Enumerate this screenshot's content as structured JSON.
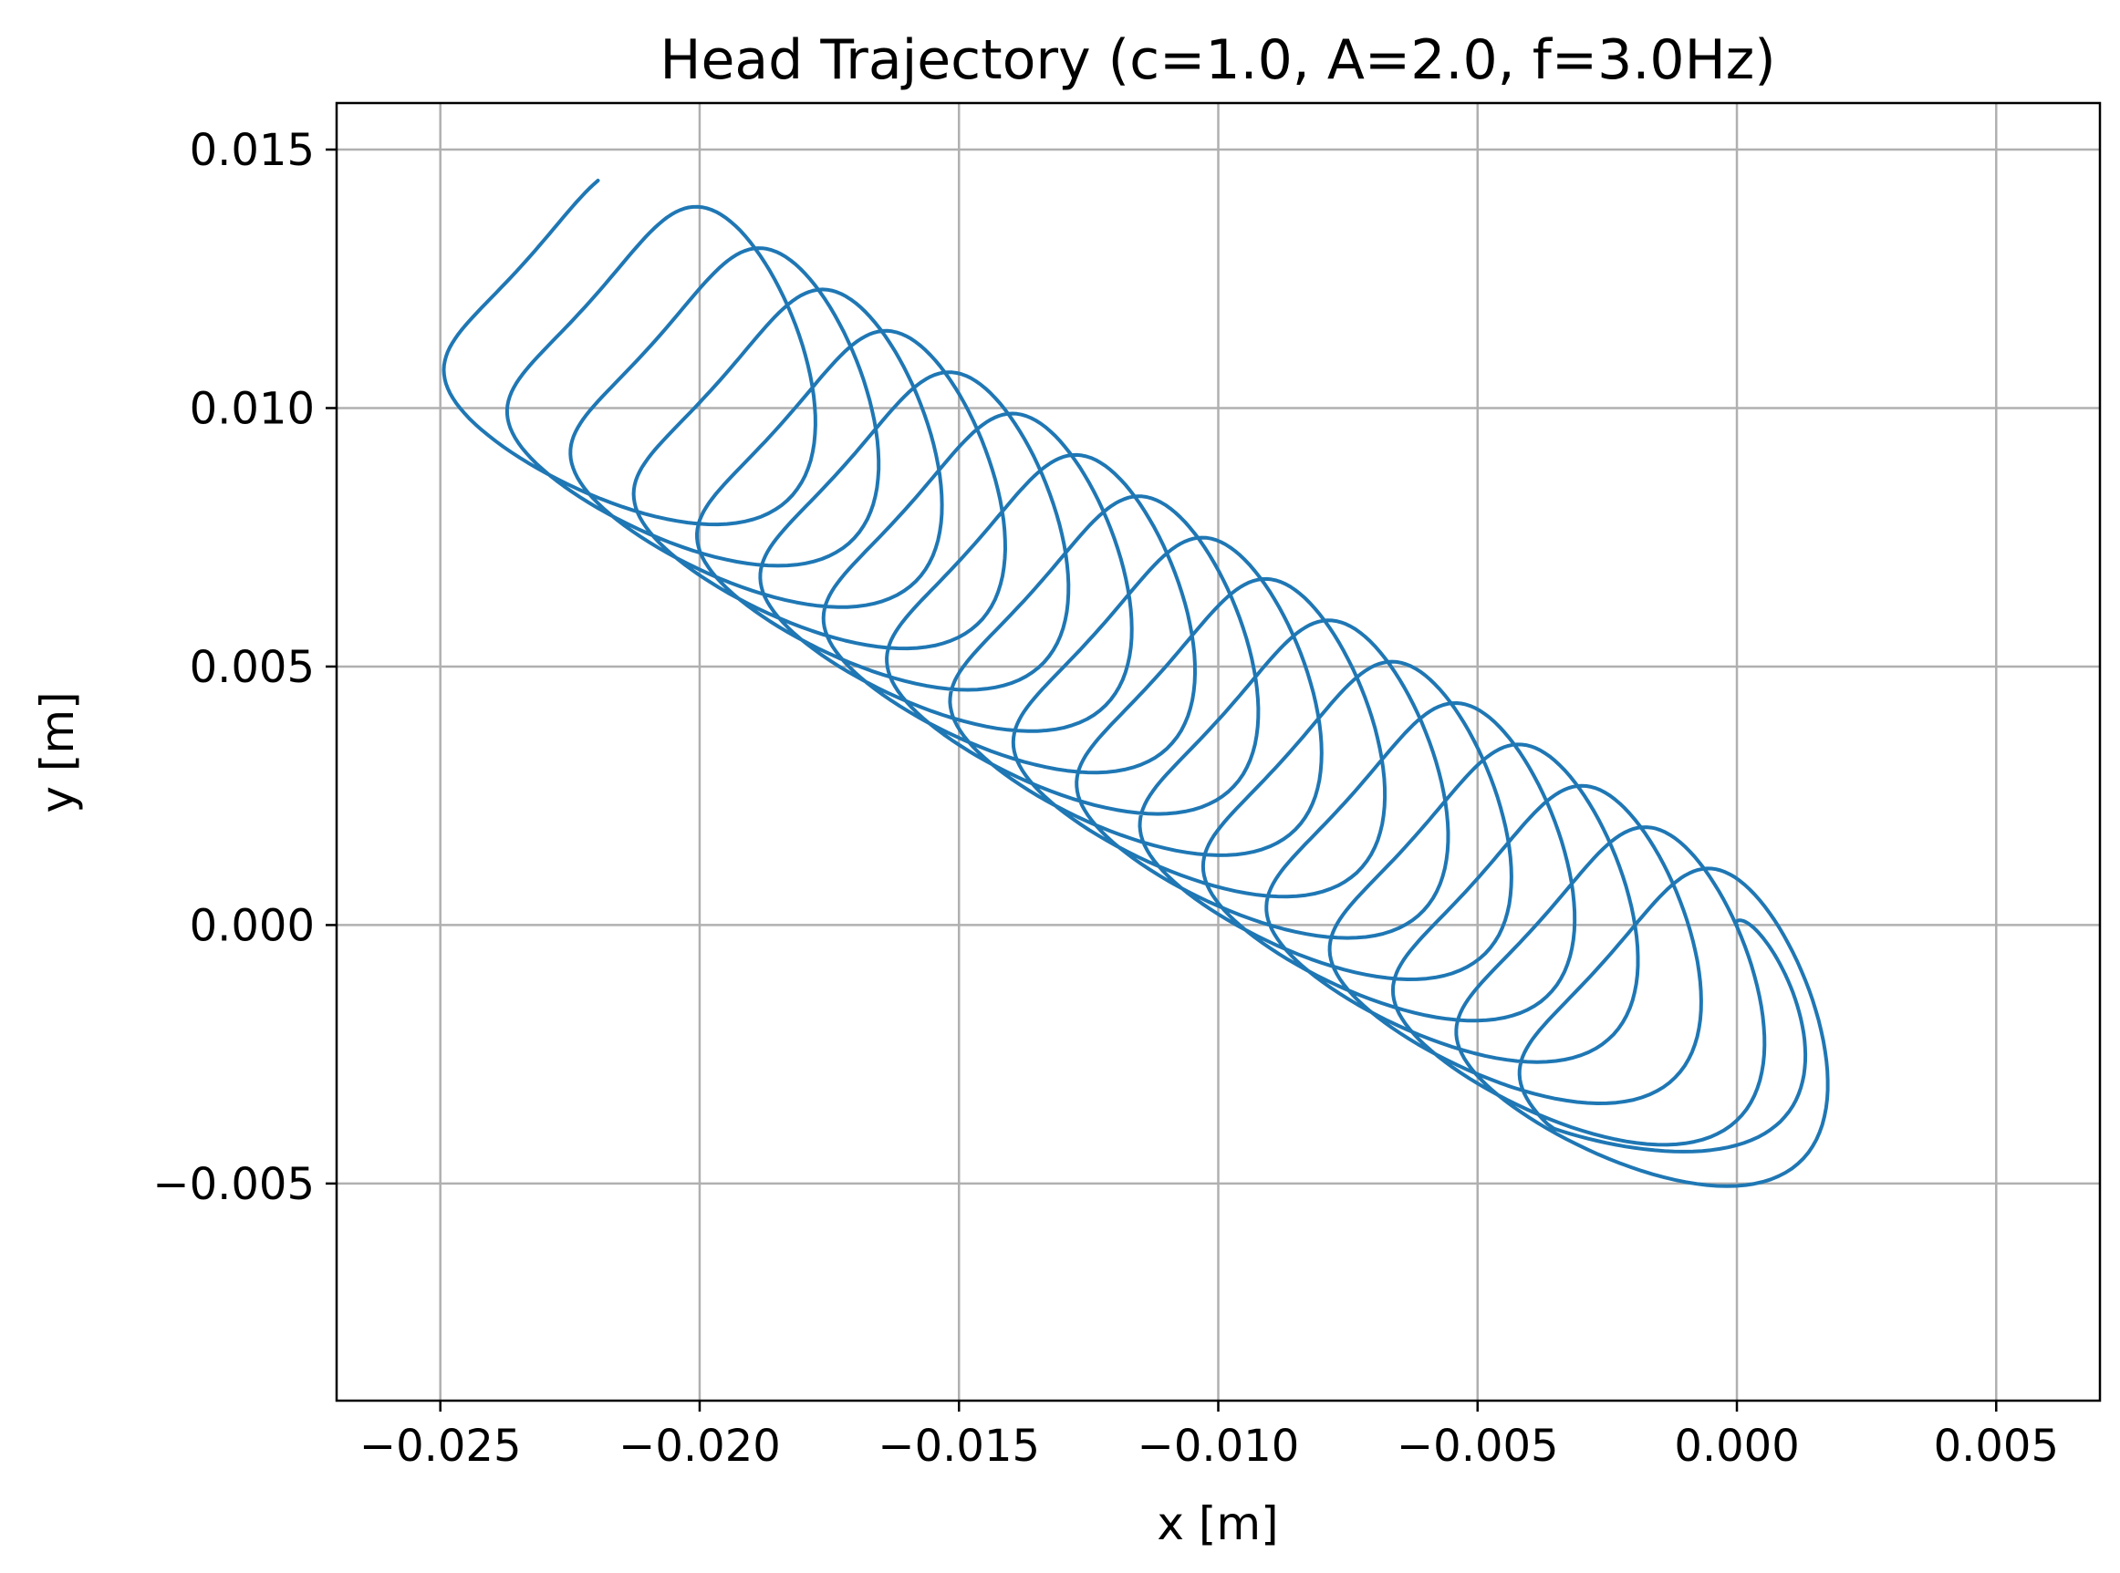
{
  "chart_data": {
    "type": "line",
    "title": "Head Trajectory (c=1.0, A=2.0, f=3.0Hz)",
    "xlabel": "x [m]",
    "ylabel": "y [m]",
    "xlim": [
      -0.027,
      0.007
    ],
    "ylim": [
      -0.0092,
      0.0159
    ],
    "xticks": [
      -0.025,
      -0.02,
      -0.015,
      -0.01,
      -0.005,
      0.0,
      0.005
    ],
    "yticks": [
      -0.005,
      0.0,
      0.005,
      0.01,
      0.015
    ],
    "xtick_labels": [
      "−0.025",
      "−0.020",
      "−0.015",
      "−0.010",
      "−0.005",
      "0.000",
      "0.005"
    ],
    "ytick_labels": [
      "−0.005",
      "0.000",
      "0.005",
      "0.010",
      "0.015"
    ],
    "grid": true,
    "series": [
      {
        "color": "#1f77b4",
        "trajectory": {
          "start": [
            0.0,
            0.0
          ],
          "loops": 18,
          "drift_per_loop": [
            -0.00122,
            0.0008
          ],
          "loop_radius": 0.0033
        }
      }
    ]
  }
}
